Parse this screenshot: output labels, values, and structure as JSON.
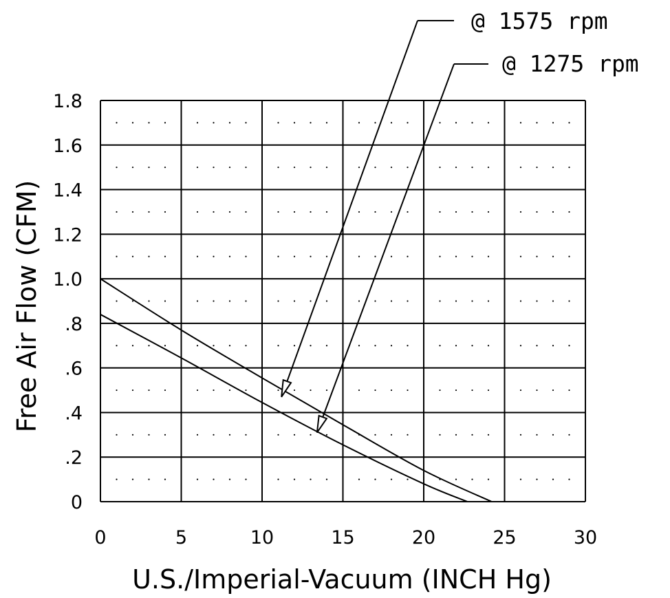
{
  "chart_data": {
    "type": "line",
    "xlabel": "U.S./Imperial-Vacuum (INCH Hg)",
    "ylabel": "Free Air Flow (CFM)",
    "xlim": [
      0,
      30
    ],
    "ylim": [
      0,
      1.8
    ],
    "x_ticks": [
      "0",
      "5",
      "10",
      "15",
      "20",
      "25",
      "30"
    ],
    "y_ticks": [
      "0",
      ".2",
      ".4",
      ".6",
      ".8",
      "1.0",
      "1.2",
      "1.4",
      "1.6",
      "1.8"
    ],
    "grid": true,
    "series": [
      {
        "name": "@ 1575 rpm",
        "x": [
          0,
          5,
          10,
          15,
          20,
          24.2
        ],
        "y": [
          1.0,
          0.77,
          0.555,
          0.345,
          0.14,
          0.0
        ]
      },
      {
        "name": "@ 1275 rpm",
        "x": [
          0,
          5,
          10,
          15,
          20,
          22.7
        ],
        "y": [
          0.84,
          0.645,
          0.445,
          0.255,
          0.08,
          0.0
        ]
      }
    ],
    "annotations": [
      {
        "text": "@ 1575 rpm",
        "series": "@ 1575 rpm",
        "x": 11.2,
        "y": 0.47
      },
      {
        "text": "@ 1275 rpm",
        "series": "@ 1275 rpm",
        "x": 13.4,
        "y": 0.31
      }
    ]
  }
}
